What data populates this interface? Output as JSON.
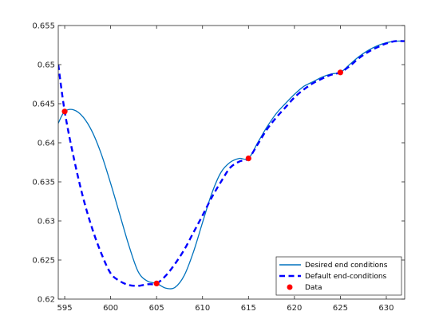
{
  "chart_data": {
    "type": "line",
    "title": "",
    "xlabel": "",
    "ylabel": "",
    "xlim": [
      594.3,
      632
    ],
    "ylim": [
      0.62,
      0.655
    ],
    "grid": false,
    "legend_placement": "bottom-right",
    "x_ticks": [
      595,
      600,
      605,
      610,
      615,
      620,
      625,
      630
    ],
    "x_tick_labels": [
      "595",
      "600",
      "605",
      "610",
      "615",
      "620",
      "625",
      "630"
    ],
    "y_ticks": [
      0.62,
      0.625,
      0.63,
      0.635,
      0.64,
      0.645,
      0.65,
      0.655
    ],
    "y_tick_labels": [
      "0.62",
      "0.625",
      "0.63",
      "0.635",
      "0.64",
      "0.645",
      "0.65",
      "0.655"
    ],
    "series": [
      {
        "name": "Desired end conditions",
        "style": "solid",
        "color": "#0072BD",
        "x": [
          594.3,
          595,
          596,
          597,
          598,
          599,
          600,
          601,
          602,
          603,
          604,
          605,
          606,
          607,
          608,
          609,
          610,
          611,
          612,
          613,
          614,
          615,
          616,
          617,
          618,
          619,
          620,
          621,
          622,
          623,
          624,
          625,
          626,
          627,
          628,
          629,
          630,
          631,
          632
        ],
        "y": [
          0.6425,
          0.644,
          0.6442,
          0.6433,
          0.6414,
          0.6385,
          0.6348,
          0.6308,
          0.6268,
          0.6235,
          0.6223,
          0.622,
          0.6214,
          0.6215,
          0.623,
          0.626,
          0.6298,
          0.6335,
          0.6362,
          0.6375,
          0.638,
          0.638,
          0.64,
          0.642,
          0.6437,
          0.645,
          0.6462,
          0.6472,
          0.6478,
          0.6484,
          0.6488,
          0.649,
          0.65,
          0.651,
          0.6518,
          0.6524,
          0.6528,
          0.653,
          0.653
        ]
      },
      {
        "name": "Default end-conditions",
        "style": "dashed",
        "color": "#0000FF",
        "x": [
          594.3,
          595,
          596,
          597,
          598,
          599,
          600,
          601,
          602,
          603,
          604,
          605,
          606,
          607,
          608,
          609,
          610,
          611,
          612,
          613,
          614,
          615,
          616,
          617,
          618,
          619,
          620,
          621,
          622,
          623,
          624,
          625,
          626,
          627,
          628,
          629,
          630,
          631,
          632
        ],
        "y": [
          0.65,
          0.644,
          0.638,
          0.633,
          0.629,
          0.6258,
          0.6233,
          0.6223,
          0.6218,
          0.6217,
          0.6219,
          0.622,
          0.623,
          0.6245,
          0.6263,
          0.6285,
          0.6307,
          0.633,
          0.635,
          0.6368,
          0.6376,
          0.638,
          0.6398,
          0.6417,
          0.6432,
          0.6445,
          0.6458,
          0.6468,
          0.6476,
          0.6482,
          0.6487,
          0.649,
          0.6498,
          0.6508,
          0.6516,
          0.6522,
          0.6527,
          0.653,
          0.653
        ]
      },
      {
        "name": "Data",
        "style": "markers",
        "color": "#FF0000",
        "x": [
          595,
          605,
          615,
          625
        ],
        "y": [
          0.644,
          0.622,
          0.638,
          0.649
        ]
      }
    ]
  }
}
